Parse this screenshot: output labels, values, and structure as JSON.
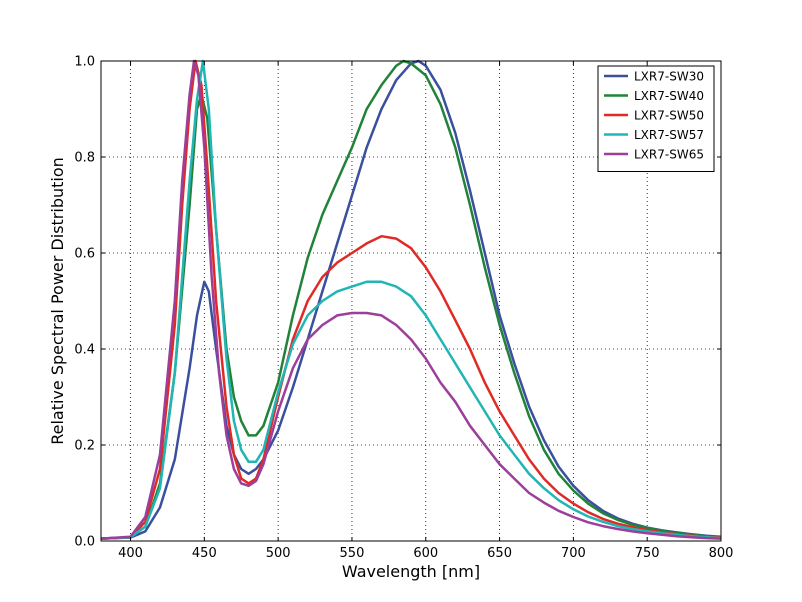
{
  "chart_data": {
    "type": "line",
    "title": "",
    "xlabel": "Wavelength [nm]",
    "ylabel": "Relative Spectral Power Distribution",
    "xlim": [
      380,
      800
    ],
    "ylim": [
      0,
      1.0
    ],
    "x_ticks": [
      400,
      450,
      500,
      550,
      600,
      650,
      700,
      750,
      800
    ],
    "y_ticks": [
      0.0,
      0.2,
      0.4,
      0.6,
      0.8,
      1.0
    ],
    "grid": true,
    "legend_position": "top-right",
    "series": [
      {
        "name": "LXR7-SW30",
        "color": "#3a4f9e",
        "points": [
          [
            380,
            0.005
          ],
          [
            400,
            0.007
          ],
          [
            410,
            0.02
          ],
          [
            420,
            0.07
          ],
          [
            430,
            0.17
          ],
          [
            440,
            0.36
          ],
          [
            445,
            0.47
          ],
          [
            450,
            0.54
          ],
          [
            453,
            0.52
          ],
          [
            458,
            0.4
          ],
          [
            465,
            0.24
          ],
          [
            470,
            0.18
          ],
          [
            475,
            0.15
          ],
          [
            480,
            0.14
          ],
          [
            485,
            0.15
          ],
          [
            490,
            0.17
          ],
          [
            500,
            0.23
          ],
          [
            510,
            0.32
          ],
          [
            520,
            0.42
          ],
          [
            530,
            0.52
          ],
          [
            540,
            0.62
          ],
          [
            550,
            0.72
          ],
          [
            560,
            0.82
          ],
          [
            570,
            0.9
          ],
          [
            580,
            0.96
          ],
          [
            590,
            0.995
          ],
          [
            595,
            1.0
          ],
          [
            600,
            0.99
          ],
          [
            610,
            0.94
          ],
          [
            620,
            0.85
          ],
          [
            630,
            0.73
          ],
          [
            640,
            0.6
          ],
          [
            650,
            0.47
          ],
          [
            660,
            0.37
          ],
          [
            670,
            0.28
          ],
          [
            680,
            0.21
          ],
          [
            690,
            0.155
          ],
          [
            700,
            0.115
          ],
          [
            710,
            0.085
          ],
          [
            720,
            0.063
          ],
          [
            730,
            0.047
          ],
          [
            740,
            0.036
          ],
          [
            750,
            0.028
          ],
          [
            760,
            0.022
          ],
          [
            770,
            0.018
          ],
          [
            780,
            0.014
          ],
          [
            790,
            0.011
          ],
          [
            800,
            0.009
          ]
        ]
      },
      {
        "name": "LXR7-SW40",
        "color": "#21823a",
        "points": [
          [
            380,
            0.005
          ],
          [
            400,
            0.008
          ],
          [
            410,
            0.03
          ],
          [
            420,
            0.12
          ],
          [
            430,
            0.35
          ],
          [
            440,
            0.7
          ],
          [
            445,
            0.9
          ],
          [
            448,
            0.93
          ],
          [
            452,
            0.88
          ],
          [
            458,
            0.65
          ],
          [
            465,
            0.4
          ],
          [
            470,
            0.3
          ],
          [
            475,
            0.25
          ],
          [
            480,
            0.22
          ],
          [
            485,
            0.22
          ],
          [
            490,
            0.24
          ],
          [
            500,
            0.33
          ],
          [
            510,
            0.47
          ],
          [
            520,
            0.59
          ],
          [
            530,
            0.68
          ],
          [
            540,
            0.75
          ],
          [
            550,
            0.82
          ],
          [
            560,
            0.9
          ],
          [
            570,
            0.95
          ],
          [
            580,
            0.99
          ],
          [
            585,
            1.0
          ],
          [
            590,
            0.995
          ],
          [
            600,
            0.97
          ],
          [
            610,
            0.91
          ],
          [
            620,
            0.82
          ],
          [
            630,
            0.7
          ],
          [
            640,
            0.57
          ],
          [
            650,
            0.45
          ],
          [
            660,
            0.35
          ],
          [
            670,
            0.26
          ],
          [
            680,
            0.19
          ],
          [
            690,
            0.14
          ],
          [
            700,
            0.105
          ],
          [
            710,
            0.078
          ],
          [
            720,
            0.058
          ],
          [
            730,
            0.044
          ],
          [
            740,
            0.034
          ],
          [
            750,
            0.027
          ],
          [
            760,
            0.021
          ],
          [
            770,
            0.017
          ],
          [
            780,
            0.013
          ],
          [
            790,
            0.01
          ],
          [
            800,
            0.008
          ]
        ]
      },
      {
        "name": "LXR7-SW50",
        "color": "#e02a26",
        "points": [
          [
            380,
            0.005
          ],
          [
            400,
            0.008
          ],
          [
            410,
            0.04
          ],
          [
            420,
            0.15
          ],
          [
            430,
            0.45
          ],
          [
            435,
            0.7
          ],
          [
            440,
            0.9
          ],
          [
            444,
            1.0
          ],
          [
            448,
            0.95
          ],
          [
            452,
            0.78
          ],
          [
            458,
            0.5
          ],
          [
            465,
            0.28
          ],
          [
            470,
            0.18
          ],
          [
            475,
            0.13
          ],
          [
            480,
            0.12
          ],
          [
            485,
            0.13
          ],
          [
            490,
            0.17
          ],
          [
            500,
            0.3
          ],
          [
            510,
            0.42
          ],
          [
            520,
            0.5
          ],
          [
            530,
            0.55
          ],
          [
            540,
            0.58
          ],
          [
            550,
            0.6
          ],
          [
            560,
            0.62
          ],
          [
            570,
            0.635
          ],
          [
            580,
            0.63
          ],
          [
            590,
            0.61
          ],
          [
            600,
            0.57
          ],
          [
            610,
            0.52
          ],
          [
            620,
            0.46
          ],
          [
            630,
            0.4
          ],
          [
            640,
            0.33
          ],
          [
            650,
            0.27
          ],
          [
            660,
            0.22
          ],
          [
            670,
            0.17
          ],
          [
            680,
            0.13
          ],
          [
            690,
            0.1
          ],
          [
            700,
            0.078
          ],
          [
            710,
            0.06
          ],
          [
            720,
            0.046
          ],
          [
            730,
            0.036
          ],
          [
            740,
            0.029
          ],
          [
            750,
            0.023
          ],
          [
            760,
            0.018
          ],
          [
            770,
            0.014
          ],
          [
            780,
            0.011
          ],
          [
            790,
            0.009
          ],
          [
            800,
            0.007
          ]
        ]
      },
      {
        "name": "LXR7-SW57",
        "color": "#22b5b5",
        "points": [
          [
            380,
            0.005
          ],
          [
            400,
            0.008
          ],
          [
            410,
            0.03
          ],
          [
            420,
            0.11
          ],
          [
            430,
            0.35
          ],
          [
            440,
            0.75
          ],
          [
            445,
            0.92
          ],
          [
            449,
            1.0
          ],
          [
            453,
            0.9
          ],
          [
            458,
            0.65
          ],
          [
            465,
            0.38
          ],
          [
            470,
            0.25
          ],
          [
            475,
            0.19
          ],
          [
            480,
            0.165
          ],
          [
            485,
            0.165
          ],
          [
            490,
            0.19
          ],
          [
            500,
            0.31
          ],
          [
            510,
            0.41
          ],
          [
            520,
            0.47
          ],
          [
            530,
            0.5
          ],
          [
            540,
            0.52
          ],
          [
            550,
            0.53
          ],
          [
            560,
            0.54
          ],
          [
            570,
            0.54
          ],
          [
            580,
            0.53
          ],
          [
            590,
            0.51
          ],
          [
            600,
            0.47
          ],
          [
            610,
            0.42
          ],
          [
            620,
            0.37
          ],
          [
            630,
            0.32
          ],
          [
            640,
            0.27
          ],
          [
            650,
            0.22
          ],
          [
            660,
            0.18
          ],
          [
            670,
            0.14
          ],
          [
            680,
            0.11
          ],
          [
            690,
            0.085
          ],
          [
            700,
            0.066
          ],
          [
            710,
            0.051
          ],
          [
            720,
            0.04
          ],
          [
            730,
            0.031
          ],
          [
            740,
            0.025
          ],
          [
            750,
            0.02
          ],
          [
            760,
            0.016
          ],
          [
            770,
            0.013
          ],
          [
            780,
            0.01
          ],
          [
            790,
            0.008
          ],
          [
            800,
            0.006
          ]
        ]
      },
      {
        "name": "LXR7-SW65",
        "color": "#9b3f9a",
        "points": [
          [
            380,
            0.005
          ],
          [
            400,
            0.009
          ],
          [
            410,
            0.05
          ],
          [
            420,
            0.18
          ],
          [
            430,
            0.5
          ],
          [
            435,
            0.75
          ],
          [
            440,
            0.93
          ],
          [
            443,
            1.0
          ],
          [
            446,
            0.97
          ],
          [
            450,
            0.82
          ],
          [
            455,
            0.55
          ],
          [
            460,
            0.35
          ],
          [
            465,
            0.22
          ],
          [
            470,
            0.15
          ],
          [
            475,
            0.12
          ],
          [
            480,
            0.115
          ],
          [
            485,
            0.125
          ],
          [
            490,
            0.16
          ],
          [
            500,
            0.27
          ],
          [
            510,
            0.36
          ],
          [
            520,
            0.42
          ],
          [
            530,
            0.45
          ],
          [
            540,
            0.47
          ],
          [
            550,
            0.475
          ],
          [
            560,
            0.475
          ],
          [
            570,
            0.47
          ],
          [
            580,
            0.45
          ],
          [
            590,
            0.42
          ],
          [
            600,
            0.38
          ],
          [
            610,
            0.33
          ],
          [
            620,
            0.29
          ],
          [
            630,
            0.24
          ],
          [
            640,
            0.2
          ],
          [
            650,
            0.16
          ],
          [
            660,
            0.13
          ],
          [
            670,
            0.1
          ],
          [
            680,
            0.08
          ],
          [
            690,
            0.063
          ],
          [
            700,
            0.05
          ],
          [
            710,
            0.039
          ],
          [
            720,
            0.031
          ],
          [
            730,
            0.025
          ],
          [
            740,
            0.02
          ],
          [
            750,
            0.016
          ],
          [
            760,
            0.013
          ],
          [
            770,
            0.01
          ],
          [
            780,
            0.008
          ],
          [
            790,
            0.006
          ],
          [
            800,
            0.005
          ]
        ]
      }
    ]
  }
}
